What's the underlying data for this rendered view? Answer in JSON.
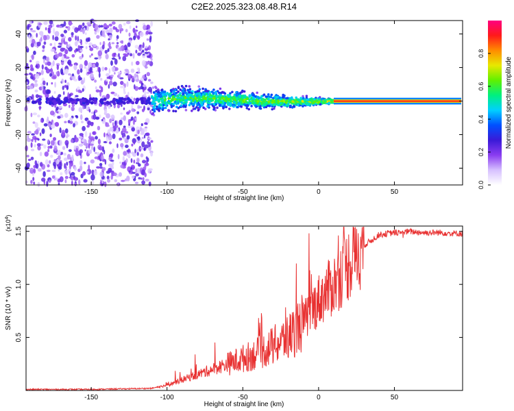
{
  "title": "C2E2.2025.323.08.48.R14",
  "chart_data": [
    {
      "type": "heatmap",
      "name": "spectrogram",
      "xlabel": "Height of straight line (km)",
      "ylabel": "Frequency (Hz)",
      "xlim": [
        -193,
        95
      ],
      "ylim": [
        -50,
        48
      ],
      "xticks": [
        -150,
        -100,
        -50,
        0,
        50
      ],
      "yticks": [
        -40,
        -20,
        0,
        20,
        40
      ],
      "colorbar": {
        "label": "Normalized spectral amplitude",
        "range": [
          0,
          1
        ],
        "ticks": [
          0.0,
          0.2,
          0.4,
          0.6,
          0.8
        ],
        "tick_labels": [
          "0.0",
          "0.2",
          "0.4",
          "0.6",
          "0.8"
        ],
        "colors": [
          "#ffffff",
          "#d6c0ff",
          "#8a3cf0",
          "#3a1ad8",
          "#0050ff",
          "#00d0ff",
          "#00f080",
          "#60f000",
          "#e8e800",
          "#ff8c00",
          "#ff1a1a",
          "#ff0080"
        ]
      },
      "regions": [
        {
          "x_range": [
            -193,
            -110
          ],
          "description_level": "low",
          "freq_span": [
            -50,
            48
          ]
        },
        {
          "x_range": [
            -110,
            10
          ],
          "description_level": "medium",
          "freq_span": [
            -10,
            10
          ]
        },
        {
          "x_range": [
            10,
            95
          ],
          "description_level": "high",
          "freq_span": [
            -1,
            1
          ]
        }
      ]
    },
    {
      "type": "line",
      "name": "snr",
      "xlabel": "Height of straight line (km)",
      "ylabel": "SNR (10 * v/v)",
      "scale_label": "(x10",
      "scale_exp": "4",
      "scale_close": ")",
      "xlim": [
        -193,
        95
      ],
      "ylim": [
        0,
        1.55
      ],
      "xticks": [
        -150,
        -100,
        -50,
        0,
        50
      ],
      "yticks": [
        0.5,
        1.0,
        1.5
      ],
      "ytick_labels": [
        "0.5",
        "1.0",
        "1.5"
      ],
      "color": "#e83030",
      "series": [
        {
          "name": "SNR",
          "x": [
            -193,
            -150,
            -110,
            -100,
            -90,
            -80,
            -70,
            -60,
            -50,
            -40,
            -30,
            -20,
            -10,
            0,
            10,
            20,
            30,
            40,
            50,
            60,
            70,
            80,
            95
          ],
          "values": [
            0.01,
            0.01,
            0.02,
            0.05,
            0.1,
            0.15,
            0.2,
            0.25,
            0.3,
            0.35,
            0.42,
            0.5,
            0.65,
            0.85,
            1.0,
            1.2,
            1.38,
            1.48,
            1.5,
            1.51,
            1.5,
            1.5,
            1.49
          ]
        }
      ]
    }
  ]
}
